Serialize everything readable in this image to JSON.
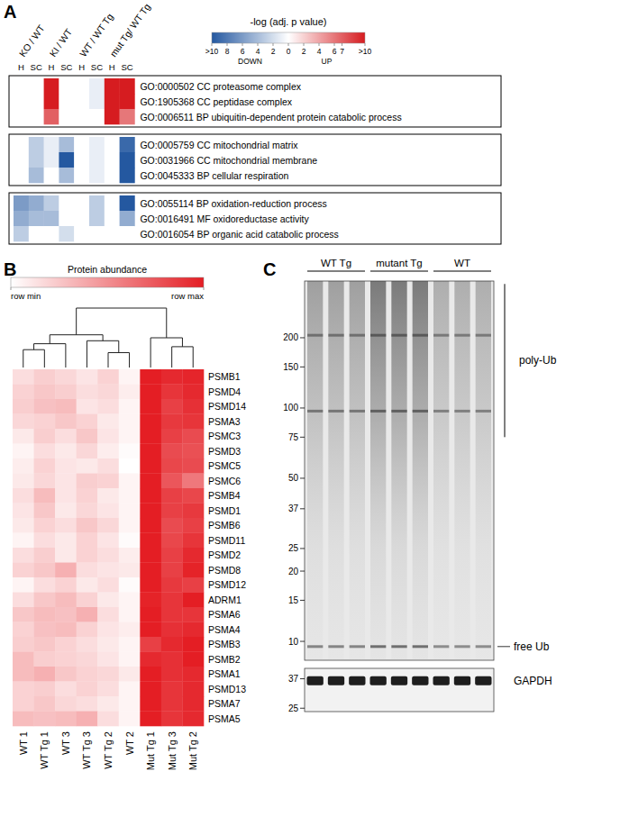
{
  "chart_data": [
    {
      "type": "heatmap",
      "panel_label": "A",
      "column_groups": [
        {
          "label": "KO / WT",
          "columns": [
            "H",
            "SC"
          ]
        },
        {
          "label": "KI / WT",
          "columns": [
            "H",
            "SC"
          ]
        },
        {
          "label": "WT / WT Tg",
          "columns": [
            "H",
            "SC"
          ]
        },
        {
          "label": "mut Tg/ WT Tg",
          "columns": [
            "H",
            "SC"
          ]
        }
      ],
      "row_groups": [
        [
          {
            "label": "GO:0000502 CC proteasome complex",
            "values": [
              0,
              0,
              12,
              0,
              0,
              -1,
              12,
              12
            ]
          },
          {
            "label": "GO:1905368 CC peptidase complex",
            "values": [
              0,
              0,
              12,
              0,
              0,
              -1,
              12,
              12
            ]
          },
          {
            "label": "GO:0006511 BP ubiquitin-dependent protein catabolic process",
            "values": [
              0,
              0,
              7,
              0,
              0,
              0,
              12,
              6
            ]
          }
        ],
        [
          {
            "label": "GO:0005759 CC mitochondrial matrix",
            "values": [
              0,
              -3,
              -1,
              -4,
              0,
              -1,
              0,
              -9
            ]
          },
          {
            "label": "GO:0031966 CC mitochondrial membrane",
            "values": [
              0,
              -3,
              -1,
              -10,
              0,
              -1,
              0,
              -10
            ]
          },
          {
            "label": "GO:0045333 BP cellular respiration",
            "values": [
              0,
              -4,
              0,
              -4,
              0,
              -1,
              0,
              -10
            ]
          }
        ],
        [
          {
            "label": "GO:0055114 BP oxidation-reduction process",
            "values": [
              -6,
              -5,
              -3,
              0,
              0,
              -3,
              0,
              -10
            ]
          },
          {
            "label": "GO:0016491 MF oxidoreductase activity",
            "values": [
              -5,
              -4,
              -4,
              0,
              0,
              -3,
              0,
              -5
            ]
          },
          {
            "label": "GO:0016054 BP organic acid catabolic process",
            "values": [
              -3,
              0,
              0,
              -2,
              0,
              0,
              0,
              0
            ]
          }
        ]
      ],
      "colorbar": {
        "title": "-log (adj. p value)",
        "range": [
          -10,
          10
        ],
        "ticks": [
          {
            "value": -10,
            "label": ">10"
          },
          {
            "value": -8,
            "label": "8"
          },
          {
            "value": -6,
            "label": "6"
          },
          {
            "value": -4,
            "label": "4"
          },
          {
            "value": -2,
            "label": "2"
          },
          0,
          2,
          4,
          6,
          7,
          {
            "value": 10,
            "label": ">10"
          }
        ],
        "down_label": "DOWN",
        "up_label": "UP"
      }
    },
    {
      "type": "heatmap",
      "panel_label": "B",
      "colorbar": {
        "title": "Protein abundance",
        "range": [
          0,
          1
        ],
        "ticks": [
          {
            "value": 0,
            "label": "row min"
          },
          {
            "value": 1,
            "label": "row max"
          }
        ]
      },
      "columns": [
        "WT 1",
        "WT Tg 1",
        "WT 3",
        "WT Tg 3",
        "WT Tg 2",
        "WT 2",
        "Mut Tg 1",
        "Mut Tg 3",
        "Mut Tg 2"
      ],
      "rows": [
        "PSMB1",
        "PSMD4",
        "PSMD14",
        "PSMA3",
        "PSMC3",
        "PSMD3",
        "PSMC5",
        "PSMC6",
        "PSMB4",
        "PSMD1",
        "PSMB6",
        "PSMD11",
        "PSMD2",
        "PSMD8",
        "PSMD12",
        "ADRM1",
        "PSMA6",
        "PSMA4",
        "PSMB3",
        "PSMB2",
        "PSMA1",
        "PSMD13",
        "PSMA7",
        "PSMA5"
      ],
      "values": [
        [
          0.15,
          0.22,
          0.18,
          0.12,
          0.2,
          0.05,
          1.0,
          0.95,
          0.97
        ],
        [
          0.2,
          0.25,
          0.22,
          0.15,
          0.18,
          0.08,
          1.0,
          0.9,
          0.95
        ],
        [
          0.22,
          0.28,
          0.3,
          0.12,
          0.15,
          0.05,
          1.0,
          0.85,
          0.92
        ],
        [
          0.18,
          0.2,
          0.25,
          0.2,
          0.1,
          0.05,
          1.0,
          0.88,
          0.9
        ],
        [
          0.1,
          0.22,
          0.15,
          0.25,
          0.12,
          0.05,
          1.0,
          0.85,
          0.8
        ],
        [
          0.05,
          0.15,
          0.1,
          0.18,
          0.08,
          0.02,
          1.0,
          0.8,
          0.78
        ],
        [
          0.08,
          0.2,
          0.12,
          0.1,
          0.15,
          0.0,
          1.0,
          0.82,
          0.8
        ],
        [
          0.1,
          0.18,
          0.12,
          0.22,
          0.2,
          0.05,
          1.0,
          0.75,
          0.6
        ],
        [
          0.15,
          0.3,
          0.12,
          0.2,
          0.1,
          0.05,
          1.0,
          0.85,
          0.82
        ],
        [
          0.12,
          0.25,
          0.1,
          0.18,
          0.12,
          0.05,
          1.0,
          0.85,
          0.88
        ],
        [
          0.1,
          0.2,
          0.15,
          0.25,
          0.18,
          0.05,
          1.0,
          0.8,
          0.85
        ],
        [
          0.05,
          0.15,
          0.1,
          0.2,
          0.12,
          0.02,
          1.0,
          0.82,
          0.9
        ],
        [
          0.15,
          0.22,
          0.1,
          0.2,
          0.15,
          0.08,
          1.0,
          0.85,
          0.95
        ],
        [
          0.2,
          0.25,
          0.35,
          0.15,
          0.12,
          0.1,
          1.0,
          0.85,
          0.98
        ],
        [
          0.05,
          0.15,
          0.2,
          0.1,
          0.15,
          0.02,
          1.0,
          0.88,
          0.85
        ],
        [
          0.15,
          0.25,
          0.3,
          0.2,
          0.1,
          0.05,
          0.98,
          0.9,
          1.0
        ],
        [
          0.25,
          0.3,
          0.28,
          0.35,
          0.15,
          0.05,
          1.0,
          0.9,
          0.9
        ],
        [
          0.2,
          0.28,
          0.3,
          0.2,
          0.12,
          0.08,
          1.0,
          0.92,
          0.95
        ],
        [
          0.22,
          0.25,
          0.2,
          0.15,
          0.1,
          0.05,
          0.85,
          0.95,
          1.0
        ],
        [
          0.3,
          0.22,
          0.2,
          0.18,
          0.12,
          0.05,
          0.95,
          0.92,
          1.0
        ],
        [
          0.3,
          0.35,
          0.25,
          0.2,
          0.18,
          0.1,
          1.0,
          0.92,
          0.95
        ],
        [
          0.2,
          0.22,
          0.15,
          0.2,
          0.15,
          0.05,
          1.0,
          0.9,
          0.95
        ],
        [
          0.2,
          0.25,
          0.18,
          0.15,
          0.1,
          0.05,
          1.0,
          0.9,
          0.95
        ],
        [
          0.3,
          0.28,
          0.3,
          0.35,
          0.15,
          0.05,
          1.0,
          0.9,
          0.95
        ]
      ],
      "dendrogram": [
        [
          0,
          1,
          0.3
        ],
        [
          9,
          2,
          0.4
        ],
        [
          4,
          5,
          0.25
        ],
        [
          3,
          11,
          0.45
        ],
        [
          10,
          12,
          0.55
        ],
        [
          7,
          8,
          0.35
        ],
        [
          6,
          14,
          0.5
        ],
        [
          13,
          15,
          1.0
        ]
      ]
    },
    {
      "type": "western_blot",
      "panel_label": "C",
      "log": "y",
      "groups": [
        {
          "label": "WT Tg",
          "lanes": 3,
          "signal": 1.0
        },
        {
          "label": "mutant Tg",
          "lanes": 3,
          "signal": 1.5
        },
        {
          "label": "WT",
          "lanes": 3,
          "signal": 0.8
        }
      ],
      "ylim": [
        8.3,
        350
      ],
      "yticks": [
        200,
        150,
        100,
        75,
        50,
        37,
        25,
        20,
        15,
        10
      ],
      "bands": [
        9.5,
        97,
        205
      ],
      "annotations": [
        {
          "label": "poly-Ub",
          "range": [
            340,
            75
          ]
        },
        {
          "label": "free Ub",
          "value": 9.5
        }
      ],
      "loading_control": {
        "label": "GAPDH",
        "ylim": [
          23.9,
          42.5
        ],
        "yticks": [
          37,
          25
        ],
        "band": 36
      }
    }
  ]
}
